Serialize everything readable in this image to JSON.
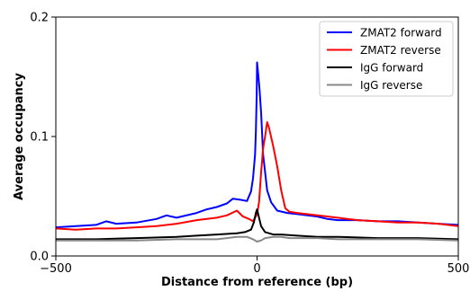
{
  "chart_data": {
    "type": "line",
    "xlabel": "Distance from reference (bp)",
    "ylabel": "Average occupancy",
    "xlim": [
      -500,
      500
    ],
    "ylim": [
      0,
      0.2
    ],
    "xticks": [
      -500,
      0,
      500
    ],
    "xtick_labels": [
      "−500",
      "0",
      "500"
    ],
    "yticks": [
      0,
      0.1,
      0.2
    ],
    "ytick_labels": [
      "0.0",
      "0.1",
      "0.2"
    ],
    "legend_position": "top-right",
    "series": [
      {
        "name": "ZMAT2 forward",
        "color": "#0000ff",
        "points": [
          [
            -500,
            0.024
          ],
          [
            -450,
            0.025
          ],
          [
            -400,
            0.026
          ],
          [
            -375,
            0.029
          ],
          [
            -350,
            0.027
          ],
          [
            -300,
            0.028
          ],
          [
            -250,
            0.031
          ],
          [
            -225,
            0.034
          ],
          [
            -200,
            0.032
          ],
          [
            -150,
            0.036
          ],
          [
            -125,
            0.039
          ],
          [
            -100,
            0.041
          ],
          [
            -75,
            0.044
          ],
          [
            -60,
            0.048
          ],
          [
            -40,
            0.047
          ],
          [
            -25,
            0.046
          ],
          [
            -15,
            0.054
          ],
          [
            -10,
            0.065
          ],
          [
            -5,
            0.085
          ],
          [
            -3,
            0.105
          ],
          [
            -1,
            0.135
          ],
          [
            0,
            0.162
          ],
          [
            3,
            0.152
          ],
          [
            6,
            0.14
          ],
          [
            10,
            0.12
          ],
          [
            15,
            0.085
          ],
          [
            25,
            0.055
          ],
          [
            35,
            0.045
          ],
          [
            50,
            0.038
          ],
          [
            75,
            0.036
          ],
          [
            100,
            0.035
          ],
          [
            125,
            0.034
          ],
          [
            150,
            0.033
          ],
          [
            175,
            0.031
          ],
          [
            200,
            0.03
          ],
          [
            250,
            0.03
          ],
          [
            300,
            0.029
          ],
          [
            350,
            0.029
          ],
          [
            400,
            0.028
          ],
          [
            450,
            0.027
          ],
          [
            500,
            0.026
          ]
        ]
      },
      {
        "name": "ZMAT2 reverse",
        "color": "#ff0000",
        "points": [
          [
            -500,
            0.023
          ],
          [
            -450,
            0.022
          ],
          [
            -400,
            0.023
          ],
          [
            -350,
            0.023
          ],
          [
            -300,
            0.024
          ],
          [
            -250,
            0.025
          ],
          [
            -200,
            0.027
          ],
          [
            -150,
            0.03
          ],
          [
            -100,
            0.032
          ],
          [
            -75,
            0.034
          ],
          [
            -50,
            0.038
          ],
          [
            -35,
            0.033
          ],
          [
            -20,
            0.031
          ],
          [
            -10,
            0.029
          ],
          [
            0,
            0.035
          ],
          [
            5,
            0.045
          ],
          [
            10,
            0.07
          ],
          [
            15,
            0.09
          ],
          [
            20,
            0.1
          ],
          [
            25,
            0.112
          ],
          [
            30,
            0.107
          ],
          [
            40,
            0.092
          ],
          [
            50,
            0.075
          ],
          [
            60,
            0.055
          ],
          [
            70,
            0.04
          ],
          [
            80,
            0.037
          ],
          [
            100,
            0.036
          ],
          [
            150,
            0.034
          ],
          [
            200,
            0.032
          ],
          [
            250,
            0.03
          ],
          [
            300,
            0.029
          ],
          [
            350,
            0.028
          ],
          [
            400,
            0.028
          ],
          [
            450,
            0.027
          ],
          [
            500,
            0.025
          ]
        ]
      },
      {
        "name": "IgG forward",
        "color": "#000000",
        "points": [
          [
            -500,
            0.014
          ],
          [
            -400,
            0.014
          ],
          [
            -300,
            0.015
          ],
          [
            -200,
            0.016
          ],
          [
            -150,
            0.017
          ],
          [
            -100,
            0.018
          ],
          [
            -50,
            0.019
          ],
          [
            -30,
            0.02
          ],
          [
            -15,
            0.022
          ],
          [
            -8,
            0.028
          ],
          [
            -3,
            0.036
          ],
          [
            0,
            0.039
          ],
          [
            5,
            0.032
          ],
          [
            10,
            0.025
          ],
          [
            20,
            0.02
          ],
          [
            40,
            0.018
          ],
          [
            60,
            0.018
          ],
          [
            100,
            0.017
          ],
          [
            150,
            0.016
          ],
          [
            200,
            0.016
          ],
          [
            300,
            0.015
          ],
          [
            400,
            0.015
          ],
          [
            500,
            0.014
          ]
        ]
      },
      {
        "name": "IgG reverse",
        "color": "#888888",
        "points": [
          [
            -500,
            0.013
          ],
          [
            -400,
            0.013
          ],
          [
            -300,
            0.013
          ],
          [
            -200,
            0.014
          ],
          [
            -150,
            0.014
          ],
          [
            -100,
            0.014
          ],
          [
            -75,
            0.015
          ],
          [
            -50,
            0.016
          ],
          [
            -25,
            0.016
          ],
          [
            -10,
            0.014
          ],
          [
            0,
            0.012
          ],
          [
            10,
            0.013
          ],
          [
            20,
            0.015
          ],
          [
            40,
            0.016
          ],
          [
            60,
            0.016
          ],
          [
            80,
            0.015
          ],
          [
            100,
            0.015
          ],
          [
            150,
            0.015
          ],
          [
            200,
            0.014
          ],
          [
            300,
            0.014
          ],
          [
            400,
            0.014
          ],
          [
            500,
            0.013
          ]
        ]
      }
    ]
  }
}
